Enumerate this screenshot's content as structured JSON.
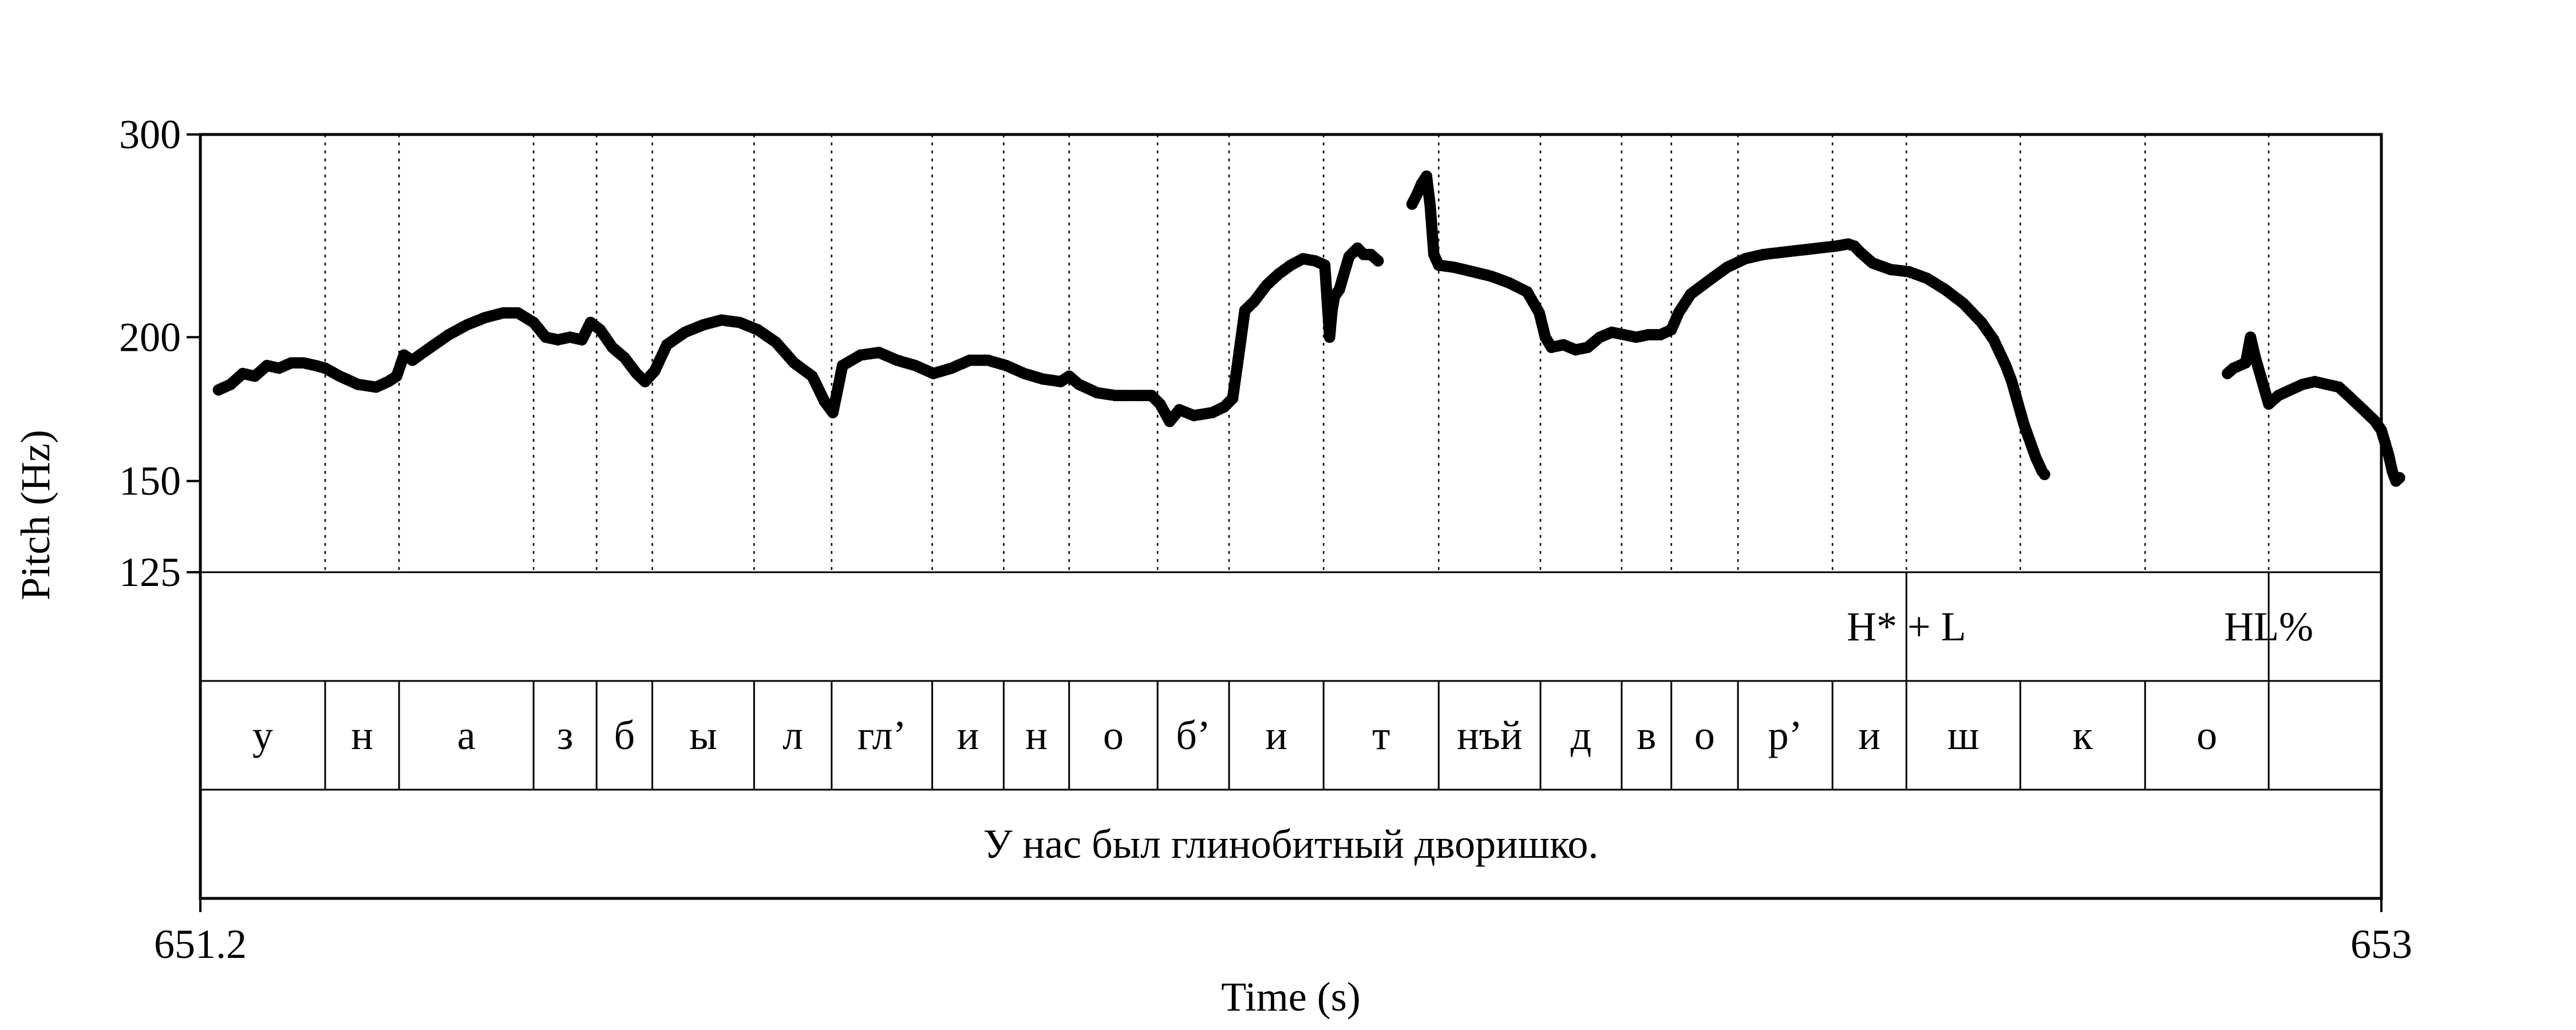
{
  "chart_data": {
    "type": "scatter",
    "xlabel": "Time (s)",
    "ylabel": "Pitch (Hz)",
    "xlim": [
      651.2,
      653
    ],
    "ylim": [
      125,
      300
    ],
    "y_scale": "log",
    "x_ticks": [
      "651.2",
      "653"
    ],
    "y_ticks": [
      {
        "value": 300,
        "label": "300"
      },
      {
        "value": 200,
        "label": "200"
      },
      {
        "value": 150,
        "label": "150"
      },
      {
        "value": 125,
        "label": "125"
      }
    ],
    "boundaries": [
      651.2,
      651.303,
      651.364,
      651.475,
      651.527,
      651.573,
      651.657,
      651.721,
      651.804,
      651.863,
      651.917,
      651.99,
      652.049,
      652.127,
      652.222,
      652.306,
      652.373,
      652.414,
      652.469,
      652.547,
      652.608,
      652.702,
      652.805,
      652.907,
      653.0
    ],
    "tones": [
      {
        "time": 652.608,
        "label": "H* + L"
      },
      {
        "time": 652.907,
        "label": "HL%"
      }
    ],
    "segments": [
      "у",
      "н",
      "а",
      "з",
      "б",
      "ы",
      "л",
      "гл’",
      "и",
      "н",
      "о",
      "б’",
      "и",
      "т",
      "нъй",
      "д",
      "в",
      "о",
      "р’",
      "и",
      "ш",
      "к",
      "о"
    ],
    "sentence": "У нас был глинобитный дворишко.",
    "pitch_contours": [
      [
        [
          651.215,
          180
        ],
        [
          651.225,
          182
        ],
        [
          651.235,
          186
        ],
        [
          651.245,
          185
        ],
        [
          651.255,
          189
        ],
        [
          651.265,
          188
        ],
        [
          651.275,
          190
        ],
        [
          651.285,
          190
        ],
        [
          651.295,
          189
        ],
        [
          651.303,
          188
        ],
        [
          651.315,
          185
        ],
        [
          651.33,
          182
        ],
        [
          651.345,
          181
        ],
        [
          651.355,
          183
        ],
        [
          651.362,
          185
        ],
        [
          651.368,
          193
        ],
        [
          651.375,
          191
        ],
        [
          651.39,
          196
        ],
        [
          651.405,
          201
        ],
        [
          651.42,
          205
        ],
        [
          651.435,
          208
        ],
        [
          651.45,
          210
        ],
        [
          651.462,
          210
        ],
        [
          651.475,
          206
        ],
        [
          651.485,
          200
        ],
        [
          651.495,
          199
        ],
        [
          651.505,
          200
        ],
        [
          651.515,
          199
        ],
        [
          651.522,
          206
        ],
        [
          651.53,
          203
        ],
        [
          651.54,
          196
        ],
        [
          651.55,
          192
        ],
        [
          651.56,
          186
        ],
        [
          651.567,
          183
        ],
        [
          651.575,
          187
        ],
        [
          651.585,
          197
        ],
        [
          651.6,
          202
        ],
        [
          651.615,
          205
        ],
        [
          651.63,
          207
        ],
        [
          651.645,
          206
        ],
        [
          651.66,
          203
        ],
        [
          651.675,
          198
        ],
        [
          651.69,
          190
        ],
        [
          651.705,
          185
        ],
        [
          651.715,
          176
        ],
        [
          651.722,
          172
        ],
        [
          651.73,
          189
        ],
        [
          651.745,
          193
        ],
        [
          651.76,
          194
        ],
        [
          651.775,
          191
        ],
        [
          651.79,
          189
        ],
        [
          651.805,
          186
        ],
        [
          651.82,
          188
        ],
        [
          651.835,
          191
        ],
        [
          651.85,
          191
        ],
        [
          651.865,
          189
        ],
        [
          651.88,
          186
        ],
        [
          651.895,
          184
        ],
        [
          651.91,
          183
        ],
        [
          651.917,
          185
        ],
        [
          651.925,
          182
        ],
        [
          651.94,
          179
        ],
        [
          651.955,
          178
        ],
        [
          651.97,
          178
        ],
        [
          651.985,
          178
        ],
        [
          651.992,
          175
        ],
        [
          652.0,
          169
        ],
        [
          652.008,
          173
        ],
        [
          652.02,
          171
        ],
        [
          652.035,
          172
        ],
        [
          652.045,
          174
        ],
        [
          652.052,
          177
        ],
        [
          652.057,
          193
        ],
        [
          652.062,
          211
        ],
        [
          652.07,
          215
        ],
        [
          652.08,
          222
        ],
        [
          652.09,
          227
        ],
        [
          652.1,
          231
        ],
        [
          652.11,
          234
        ],
        [
          652.12,
          233
        ],
        [
          652.128,
          231
        ],
        [
          652.132,
          200
        ],
        [
          652.134,
          211
        ],
        [
          652.136,
          217
        ],
        [
          652.14,
          220
        ],
        [
          652.148,
          235
        ],
        [
          652.155,
          239
        ],
        [
          652.16,
          236
        ],
        [
          652.166,
          236
        ],
        [
          652.172,
          233
        ]
      ],
      [
        [
          652.2,
          261
        ],
        [
          652.204,
          266
        ],
        [
          652.208,
          272
        ],
        [
          652.212,
          276
        ],
        [
          652.215,
          260
        ],
        [
          652.218,
          236
        ],
        [
          652.222,
          231
        ],
        [
          652.235,
          230
        ],
        [
          652.25,
          228
        ],
        [
          652.265,
          226
        ],
        [
          652.28,
          223
        ],
        [
          652.295,
          219
        ],
        [
          652.305,
          210
        ],
        [
          652.31,
          200
        ],
        [
          652.315,
          196
        ],
        [
          652.325,
          197
        ],
        [
          652.335,
          195
        ],
        [
          652.345,
          196
        ],
        [
          652.355,
          200
        ],
        [
          652.365,
          202
        ],
        [
          652.375,
          201
        ],
        [
          652.385,
          200
        ],
        [
          652.395,
          201
        ],
        [
          652.405,
          201
        ],
        [
          652.414,
          203
        ],
        [
          652.42,
          210
        ],
        [
          652.43,
          218
        ],
        [
          652.445,
          224
        ],
        [
          652.46,
          230
        ],
        [
          652.475,
          234
        ],
        [
          652.49,
          236
        ],
        [
          652.505,
          237
        ],
        [
          652.52,
          238
        ],
        [
          652.535,
          239
        ],
        [
          652.55,
          240
        ],
        [
          652.56,
          241
        ],
        [
          652.565,
          240
        ],
        [
          652.57,
          237
        ],
        [
          652.58,
          232
        ],
        [
          652.595,
          229
        ],
        [
          652.61,
          228
        ],
        [
          652.625,
          225
        ],
        [
          652.64,
          220
        ],
        [
          652.655,
          214
        ],
        [
          652.67,
          206
        ],
        [
          652.68,
          199
        ],
        [
          652.69,
          189
        ],
        [
          652.695,
          183
        ],
        [
          652.705,
          168
        ],
        [
          652.715,
          157
        ],
        [
          652.72,
          153
        ],
        [
          652.722,
          152
        ]
      ],
      [
        [
          652.873,
          186
        ],
        [
          652.878,
          188
        ],
        [
          652.883,
          189
        ],
        [
          652.888,
          190
        ],
        [
          652.892,
          200
        ],
        [
          652.896,
          192
        ],
        [
          652.907,
          175
        ],
        [
          652.915,
          178
        ],
        [
          652.925,
          180
        ],
        [
          652.935,
          182
        ],
        [
          652.945,
          183
        ],
        [
          652.955,
          182
        ],
        [
          652.965,
          181
        ],
        [
          652.975,
          177
        ],
        [
          652.985,
          173
        ],
        [
          652.99,
          171
        ],
        [
          652.995,
          169
        ],
        [
          653.0,
          166
        ],
        [
          653.003,
          162
        ],
        [
          653.006,
          158
        ],
        [
          653.009,
          153
        ],
        [
          653.012,
          150
        ],
        [
          653.015,
          151
        ]
      ]
    ]
  }
}
